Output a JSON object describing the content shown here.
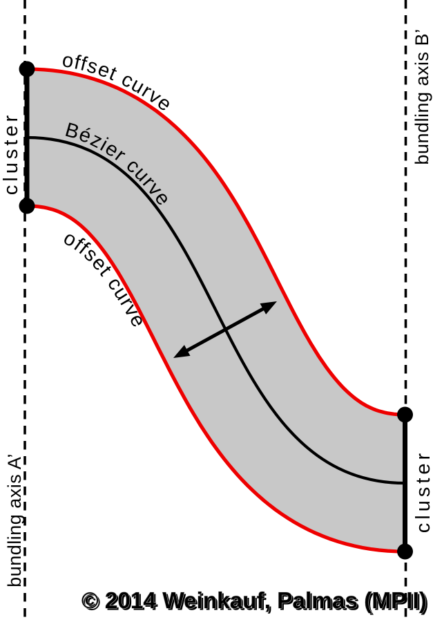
{
  "figure": {
    "labels": {
      "offset_curve_top": "offset curve",
      "bezier_curve": "Bézier curve",
      "offset_curve_bottom": "offset curve",
      "cluster_left": "cluster",
      "cluster_right": "cluster",
      "bundling_axis_left": "bundling axis A’",
      "bundling_axis_right": "bundling axis B’"
    },
    "copyright": "© 2014 Weinkauf, Palmas (MPII)",
    "colors": {
      "band_fill": "#c8c8c8",
      "offset_curve_red": "#ee0000",
      "curve_black": "#000000",
      "copyright_shadow": "#bfbfbf",
      "copyright_fill": "#ffffff"
    }
  }
}
